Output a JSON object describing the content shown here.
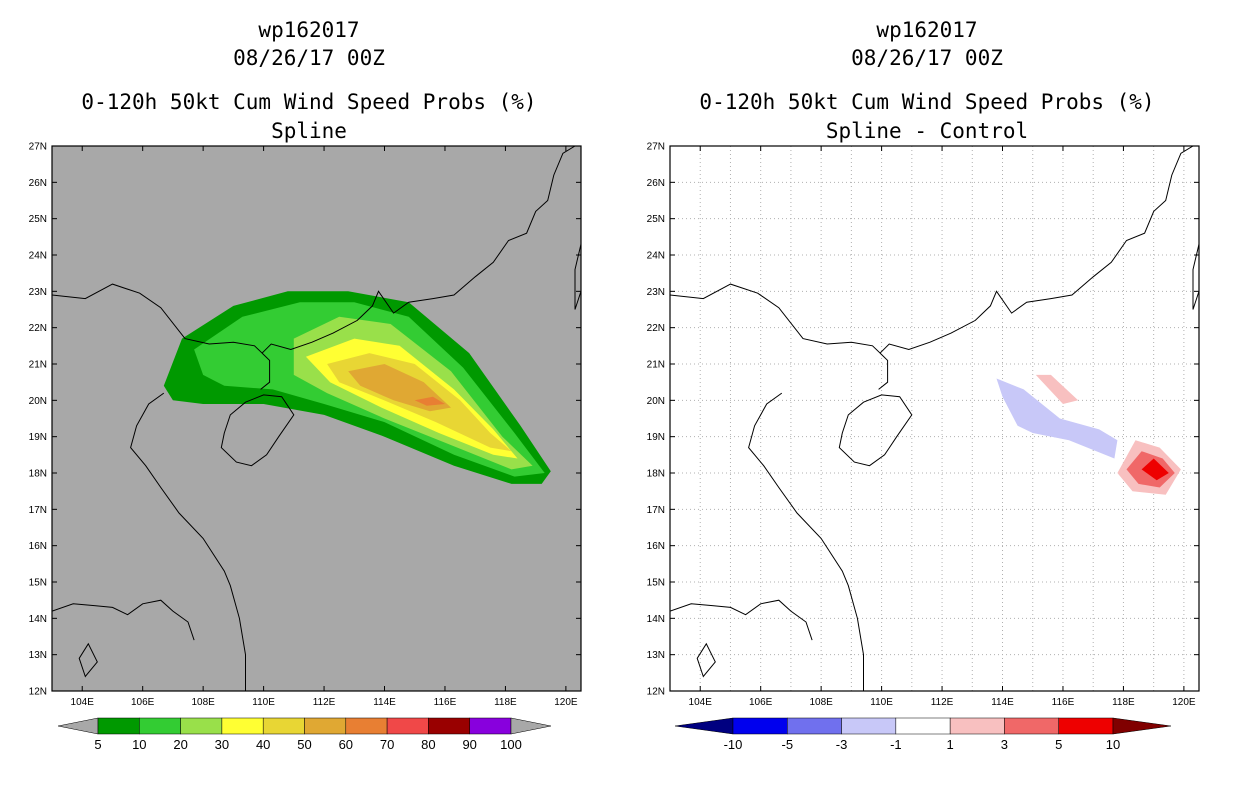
{
  "panels": [
    {
      "title_line1": "wp162017",
      "title_line2": "08/26/17 00Z",
      "title_line3": "0-120h 50kt Cum Wind Speed Probs (%)",
      "title_line4": "Spline",
      "background": "#a8a8a8"
    },
    {
      "title_line1": "wp162017",
      "title_line2": "08/26/17 00Z",
      "title_line3": "0-120h 50kt Cum Wind Speed Probs (%)",
      "title_line4": "Spline - Control",
      "background": "#ffffff"
    }
  ],
  "chart_data": [
    {
      "type": "heatmap",
      "title": "0-120h 50kt Cum Wind Speed Probs (%)",
      "subtitle": "Spline",
      "xlim": [
        103,
        120.5
      ],
      "ylim": [
        12,
        27
      ],
      "xticks": [
        "104E",
        "106E",
        "108E",
        "110E",
        "112E",
        "114E",
        "116E",
        "118E",
        "120E"
      ],
      "yticks": [
        "12N",
        "13N",
        "14N",
        "15N",
        "16N",
        "17N",
        "18N",
        "19N",
        "20N",
        "21N",
        "22N",
        "23N",
        "24N",
        "25N",
        "26N",
        "27N"
      ],
      "grid": false,
      "colorbar": {
        "labels": [
          "5",
          "10",
          "20",
          "30",
          "40",
          "50",
          "60",
          "70",
          "80",
          "90",
          "100"
        ],
        "colors": [
          "#009900",
          "#33cc33",
          "#99e04a",
          "#ffff33",
          "#e8d634",
          "#e0a833",
          "#e87f33",
          "#f04848",
          "#990000",
          "#8800dd"
        ]
      },
      "regions": [
        {
          "level": "5-10",
          "color": "#009900",
          "points": [
            [
              106.7,
              20.4
            ],
            [
              107.3,
              21.7
            ],
            [
              109,
              22.6
            ],
            [
              110.8,
              23.0
            ],
            [
              112.8,
              23.0
            ],
            [
              114.8,
              22.7
            ],
            [
              116.8,
              21.3
            ],
            [
              118.5,
              19.3
            ],
            [
              119.5,
              18.05
            ],
            [
              119.2,
              17.7
            ],
            [
              118.2,
              17.7
            ],
            [
              116.3,
              18.2
            ],
            [
              114.0,
              19.0
            ],
            [
              112.0,
              19.6
            ],
            [
              110.0,
              19.9
            ],
            [
              108.0,
              19.9
            ],
            [
              107.0,
              20.0
            ]
          ]
        },
        {
          "level": "10-20",
          "color": "#33cc33",
          "points": [
            [
              107.7,
              21.4
            ],
            [
              109.3,
              22.3
            ],
            [
              111.2,
              22.7
            ],
            [
              113.0,
              22.7
            ],
            [
              114.8,
              22.3
            ],
            [
              116.6,
              20.9
            ],
            [
              118.3,
              19.1
            ],
            [
              119.3,
              18.0
            ],
            [
              118.3,
              17.9
            ],
            [
              116.3,
              18.5
            ],
            [
              114.0,
              19.4
            ],
            [
              112.0,
              19.9
            ],
            [
              110.3,
              20.3
            ],
            [
              108.7,
              20.4
            ],
            [
              108.0,
              20.7
            ]
          ]
        },
        {
          "level": "20-30",
          "color": "#99e04a",
          "points": [
            [
              111.0,
              21.7
            ],
            [
              112.5,
              22.3
            ],
            [
              114.2,
              22.1
            ],
            [
              116.2,
              20.8
            ],
            [
              117.9,
              19.0
            ],
            [
              118.9,
              18.2
            ],
            [
              118.2,
              18.1
            ],
            [
              116.1,
              18.8
            ],
            [
              114.0,
              19.5
            ],
            [
              112.1,
              20.2
            ],
            [
              111.0,
              20.7
            ]
          ]
        },
        {
          "level": "30-40",
          "color": "#ffff33",
          "points": [
            [
              111.4,
              21.2
            ],
            [
              113.0,
              21.7
            ],
            [
              114.5,
              21.5
            ],
            [
              116.3,
              20.3
            ],
            [
              117.6,
              19.2
            ],
            [
              118.4,
              18.4
            ],
            [
              117.6,
              18.5
            ],
            [
              115.8,
              19.1
            ],
            [
              113.9,
              19.8
            ],
            [
              112.2,
              20.5
            ]
          ]
        },
        {
          "level": "40-50",
          "color": "#e8d634",
          "points": [
            [
              112.1,
              21.0
            ],
            [
              113.5,
              21.3
            ],
            [
              115.0,
              21.0
            ],
            [
              116.5,
              20.0
            ],
            [
              117.5,
              19.1
            ],
            [
              118.2,
              18.6
            ],
            [
              117.5,
              18.7
            ],
            [
              115.7,
              19.4
            ],
            [
              113.7,
              20.1
            ],
            [
              112.5,
              20.5
            ]
          ]
        },
        {
          "level": "50-60",
          "color": "#e0a833",
          "points": [
            [
              112.8,
              20.8
            ],
            [
              114.0,
              21.0
            ],
            [
              115.3,
              20.5
            ],
            [
              116.2,
              19.8
            ],
            [
              115.5,
              19.7
            ],
            [
              114.3,
              20.0
            ],
            [
              113.2,
              20.4
            ]
          ]
        },
        {
          "level": "60-70",
          "color": "#e87f33",
          "points": [
            [
              115.0,
              20.0
            ],
            [
              115.6,
              20.1
            ],
            [
              116.0,
              19.9
            ],
            [
              115.4,
              19.85
            ]
          ]
        }
      ]
    },
    {
      "type": "heatmap",
      "title": "0-120h 50kt Cum Wind Speed Probs (%)",
      "subtitle": "Spline - Control",
      "xlim": [
        103,
        120.5
      ],
      "ylim": [
        12,
        27
      ],
      "xticks": [
        "104E",
        "106E",
        "108E",
        "110E",
        "112E",
        "114E",
        "116E",
        "118E",
        "120E"
      ],
      "yticks": [
        "12N",
        "13N",
        "14N",
        "15N",
        "16N",
        "17N",
        "18N",
        "19N",
        "20N",
        "21N",
        "22N",
        "23N",
        "24N",
        "25N",
        "26N",
        "27N"
      ],
      "grid": true,
      "colorbar": {
        "labels": [
          "-10",
          "-5",
          "-3",
          "-1",
          "1",
          "3",
          "5",
          "10"
        ],
        "colors": [
          "#000080",
          "#0000ee",
          "#7070ee",
          "#c8c8f8",
          "#ffffff",
          "#f8c0c0",
          "#f06868",
          "#ee0000",
          "#800000"
        ]
      },
      "regions": [
        {
          "level": "-3 to -1",
          "color": "#c8c8f8",
          "points": [
            [
              113.8,
              20.6
            ],
            [
              114.7,
              20.3
            ],
            [
              115.9,
              19.5
            ],
            [
              117.2,
              19.2
            ],
            [
              117.8,
              18.9
            ],
            [
              117.7,
              18.4
            ],
            [
              116.2,
              18.9
            ],
            [
              115.0,
              19.1
            ],
            [
              114.5,
              19.3
            ],
            [
              114.0,
              20.1
            ]
          ]
        },
        {
          "level": "1 to 3",
          "color": "#f8c0c0",
          "points": [
            [
              115.1,
              20.7
            ],
            [
              115.6,
              20.7
            ],
            [
              116.5,
              20.0
            ],
            [
              116.0,
              19.9
            ]
          ]
        },
        {
          "level": "1 to 3",
          "color": "#f8c0c0",
          "points": [
            [
              117.8,
              18.0
            ],
            [
              118.4,
              18.9
            ],
            [
              119.2,
              18.7
            ],
            [
              119.9,
              18.1
            ],
            [
              119.4,
              17.4
            ],
            [
              118.3,
              17.5
            ]
          ]
        },
        {
          "level": "3 to 5",
          "color": "#f06868",
          "points": [
            [
              118.1,
              18.1
            ],
            [
              118.6,
              18.6
            ],
            [
              119.3,
              18.4
            ],
            [
              119.7,
              18.0
            ],
            [
              119.2,
              17.6
            ],
            [
              118.5,
              17.7
            ]
          ]
        },
        {
          "level": "5 to 10",
          "color": "#ee0000",
          "points": [
            [
              118.6,
              18.1
            ],
            [
              119.0,
              18.4
            ],
            [
              119.5,
              18.0
            ],
            [
              119.1,
              17.8
            ]
          ]
        }
      ]
    }
  ],
  "coastline": [
    [
      [
        103.0,
        22.9
      ],
      [
        104.1,
        22.8
      ],
      [
        105.0,
        23.2
      ],
      [
        105.9,
        22.95
      ],
      [
        106.6,
        22.55
      ],
      [
        107.4,
        21.7
      ],
      [
        108.2,
        21.55
      ],
      [
        109.0,
        21.6
      ],
      [
        109.7,
        21.5
      ],
      [
        109.95,
        21.3
      ],
      [
        110.25,
        21.55
      ],
      [
        110.9,
        21.4
      ],
      [
        111.6,
        21.6
      ],
      [
        112.3,
        21.85
      ],
      [
        113.1,
        22.2
      ],
      [
        113.6,
        22.6
      ],
      [
        113.8,
        23.0
      ],
      [
        114.3,
        22.4
      ],
      [
        114.8,
        22.7
      ],
      [
        115.6,
        22.8
      ],
      [
        116.3,
        22.9
      ],
      [
        117.0,
        23.4
      ],
      [
        117.6,
        23.8
      ],
      [
        118.1,
        24.4
      ],
      [
        118.7,
        24.6
      ],
      [
        119.0,
        25.2
      ],
      [
        119.4,
        25.5
      ],
      [
        119.6,
        26.2
      ],
      [
        119.9,
        26.8
      ],
      [
        120.3,
        27.0
      ]
    ],
    [
      [
        109.95,
        21.3
      ],
      [
        110.2,
        21.1
      ],
      [
        110.2,
        20.5
      ],
      [
        109.9,
        20.3
      ]
    ],
    [
      [
        106.7,
        20.2
      ],
      [
        106.2,
        19.9
      ],
      [
        105.8,
        19.3
      ],
      [
        105.6,
        18.7
      ],
      [
        106.1,
        18.2
      ],
      [
        106.6,
        17.6
      ],
      [
        107.2,
        16.9
      ],
      [
        108.0,
        16.2
      ],
      [
        108.7,
        15.3
      ],
      [
        108.9,
        14.9
      ],
      [
        109.2,
        14.0
      ],
      [
        109.4,
        13.0
      ],
      [
        109.4,
        12.0
      ]
    ],
    [
      [
        103.0,
        14.2
      ],
      [
        103.7,
        14.4
      ],
      [
        104.4,
        14.35
      ],
      [
        105.0,
        14.3
      ],
      [
        105.5,
        14.1
      ],
      [
        106.0,
        14.4
      ],
      [
        106.6,
        14.5
      ],
      [
        107.0,
        14.2
      ],
      [
        107.5,
        13.9
      ],
      [
        107.7,
        13.4
      ]
    ]
  ],
  "islands": [
    [
      [
        108.7,
        19.1
      ],
      [
        108.6,
        18.7
      ],
      [
        109.1,
        18.3
      ],
      [
        109.6,
        18.2
      ],
      [
        110.1,
        18.5
      ],
      [
        110.5,
        19.0
      ],
      [
        111.0,
        19.6
      ],
      [
        110.6,
        20.1
      ],
      [
        110.0,
        20.15
      ],
      [
        109.4,
        19.95
      ],
      [
        108.9,
        19.6
      ]
    ],
    [
      [
        120.3,
        22.5
      ],
      [
        120.5,
        23.0
      ],
      [
        120.5,
        24.3
      ],
      [
        120.3,
        23.6
      ]
    ],
    [
      [
        104.1,
        12.4
      ],
      [
        103.9,
        12.9
      ],
      [
        104.2,
        13.3
      ],
      [
        104.5,
        12.8
      ]
    ]
  ]
}
